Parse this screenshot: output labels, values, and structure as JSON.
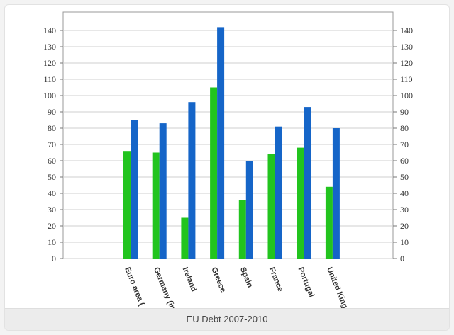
{
  "caption": "EU Debt 2007-2010",
  "chart_data": {
    "type": "bar",
    "title": "",
    "xlabel": "",
    "ylabel": "",
    "categories": [
      "Euro area (",
      "Germany (in",
      "Ireland",
      "Greece",
      "Spain",
      "France",
      "Portugal",
      "United King"
    ],
    "series": [
      {
        "color": "#22c41e",
        "values": [
          66,
          65,
          25,
          105,
          36,
          64,
          68,
          44
        ]
      },
      {
        "color": "#1565c8",
        "values": [
          85,
          83,
          96,
          142,
          60,
          81,
          93,
          80
        ]
      }
    ],
    "ylim": [
      0,
      140
    ],
    "yticks": [
      0,
      10,
      20,
      30,
      40,
      50,
      60,
      70,
      80,
      90,
      100,
      110,
      120,
      130,
      140
    ],
    "right_axis": true,
    "grid": true,
    "legend": "none"
  }
}
